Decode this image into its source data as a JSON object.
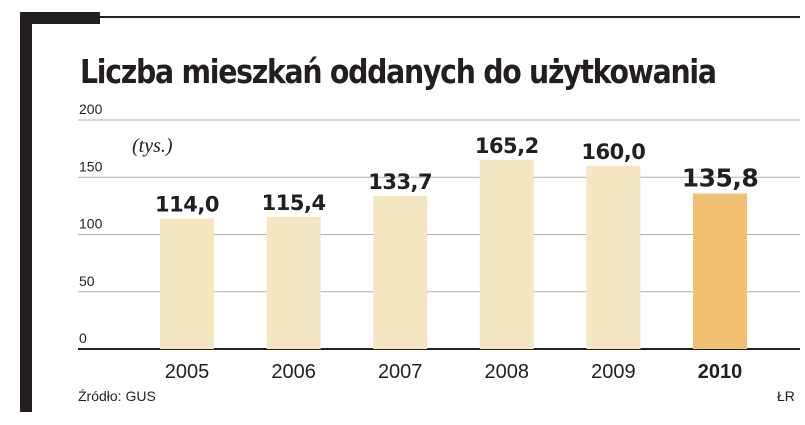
{
  "title": "Liczba mieszkań oddanych do użytkowania",
  "unit": "(tys.)",
  "source": "Źródło: GUS",
  "author": "ŁR",
  "colors": {
    "bar": "#f4e6c0",
    "highlight": "#f2c272",
    "gridline": "#b5b0aa",
    "baseline": "#231f20"
  },
  "chart_data": {
    "type": "bar",
    "title": "Liczba mieszkań oddanych do użytkowania",
    "xlabel": "",
    "ylabel": "(tys.)",
    "categories": [
      "2005",
      "2006",
      "2007",
      "2008",
      "2009",
      "2010"
    ],
    "values": [
      114.0,
      115.4,
      133.7,
      165.2,
      160.0,
      135.8
    ],
    "value_labels": [
      "114,0",
      "115,4",
      "133,7",
      "165,2",
      "160,0",
      "135,8"
    ],
    "highlight_category": "2010",
    "ylim": [
      0,
      200
    ],
    "yticks": [
      0,
      50,
      100,
      150,
      200
    ],
    "grid": true,
    "legend": "none"
  }
}
